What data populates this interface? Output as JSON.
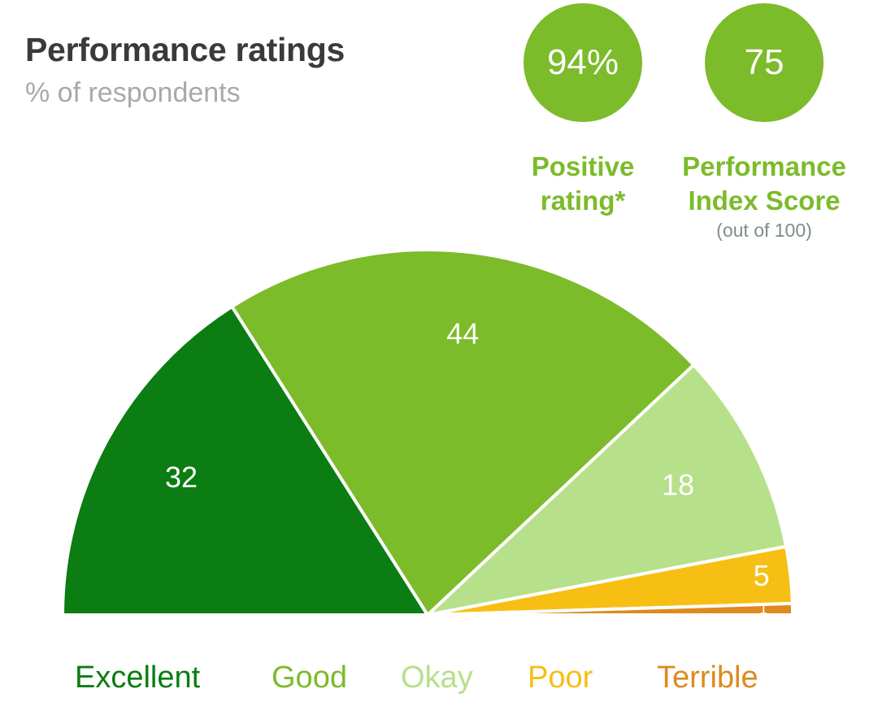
{
  "title": "Performance ratings",
  "subtitle": "% of respondents",
  "kpis": {
    "positive": {
      "value": "94%",
      "label_line1": "Positive",
      "label_line2": "rating*",
      "color": "#7cbb2a"
    },
    "index": {
      "value": "75",
      "label_line1": "Performance",
      "label_line2": "Index Score",
      "note": "(out of 100)",
      "color": "#7cbb2a"
    }
  },
  "chart_data": {
    "type": "pie",
    "variant": "semicircle",
    "title": "Performance ratings",
    "subtitle": "% of respondents",
    "categories": [
      "Excellent",
      "Good",
      "Okay",
      "Poor",
      "Terrible"
    ],
    "values": [
      32,
      44,
      18,
      5,
      1
    ],
    "colors": [
      "#0b7d12",
      "#7cbb2a",
      "#b7e08a",
      "#f7bf14",
      "#dd8a1e"
    ],
    "label_colors": [
      "#0b7d12",
      "#7cbb2a",
      "#b7e08a",
      "#f7bf14",
      "#dd8a1e"
    ],
    "legend": "bottom"
  }
}
